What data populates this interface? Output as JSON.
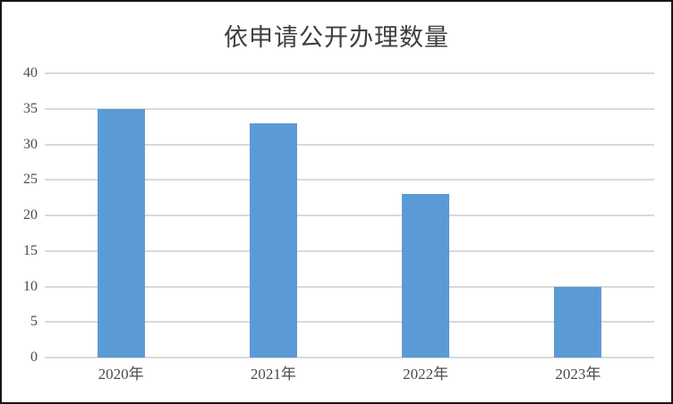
{
  "chart_data": {
    "type": "bar",
    "title": "依申请公开办理数量",
    "categories": [
      "2020年",
      "2021年",
      "2022年",
      "2023年"
    ],
    "values": [
      35,
      33,
      23,
      10
    ],
    "xlabel": "",
    "ylabel": "",
    "ylim": [
      0,
      40
    ],
    "ytick_step": 5,
    "ytick_labels": [
      "0",
      "5",
      "10",
      "15",
      "20",
      "25",
      "30",
      "35",
      "40"
    ],
    "grid": true,
    "legend": "none",
    "colors": {
      "bar": "#5b9bd5",
      "gridline": "#d9d9d9",
      "axis_label": "#4a4a52",
      "title": "#3f3f3f",
      "frame_border": "#161616",
      "background": "#ffffff"
    }
  }
}
